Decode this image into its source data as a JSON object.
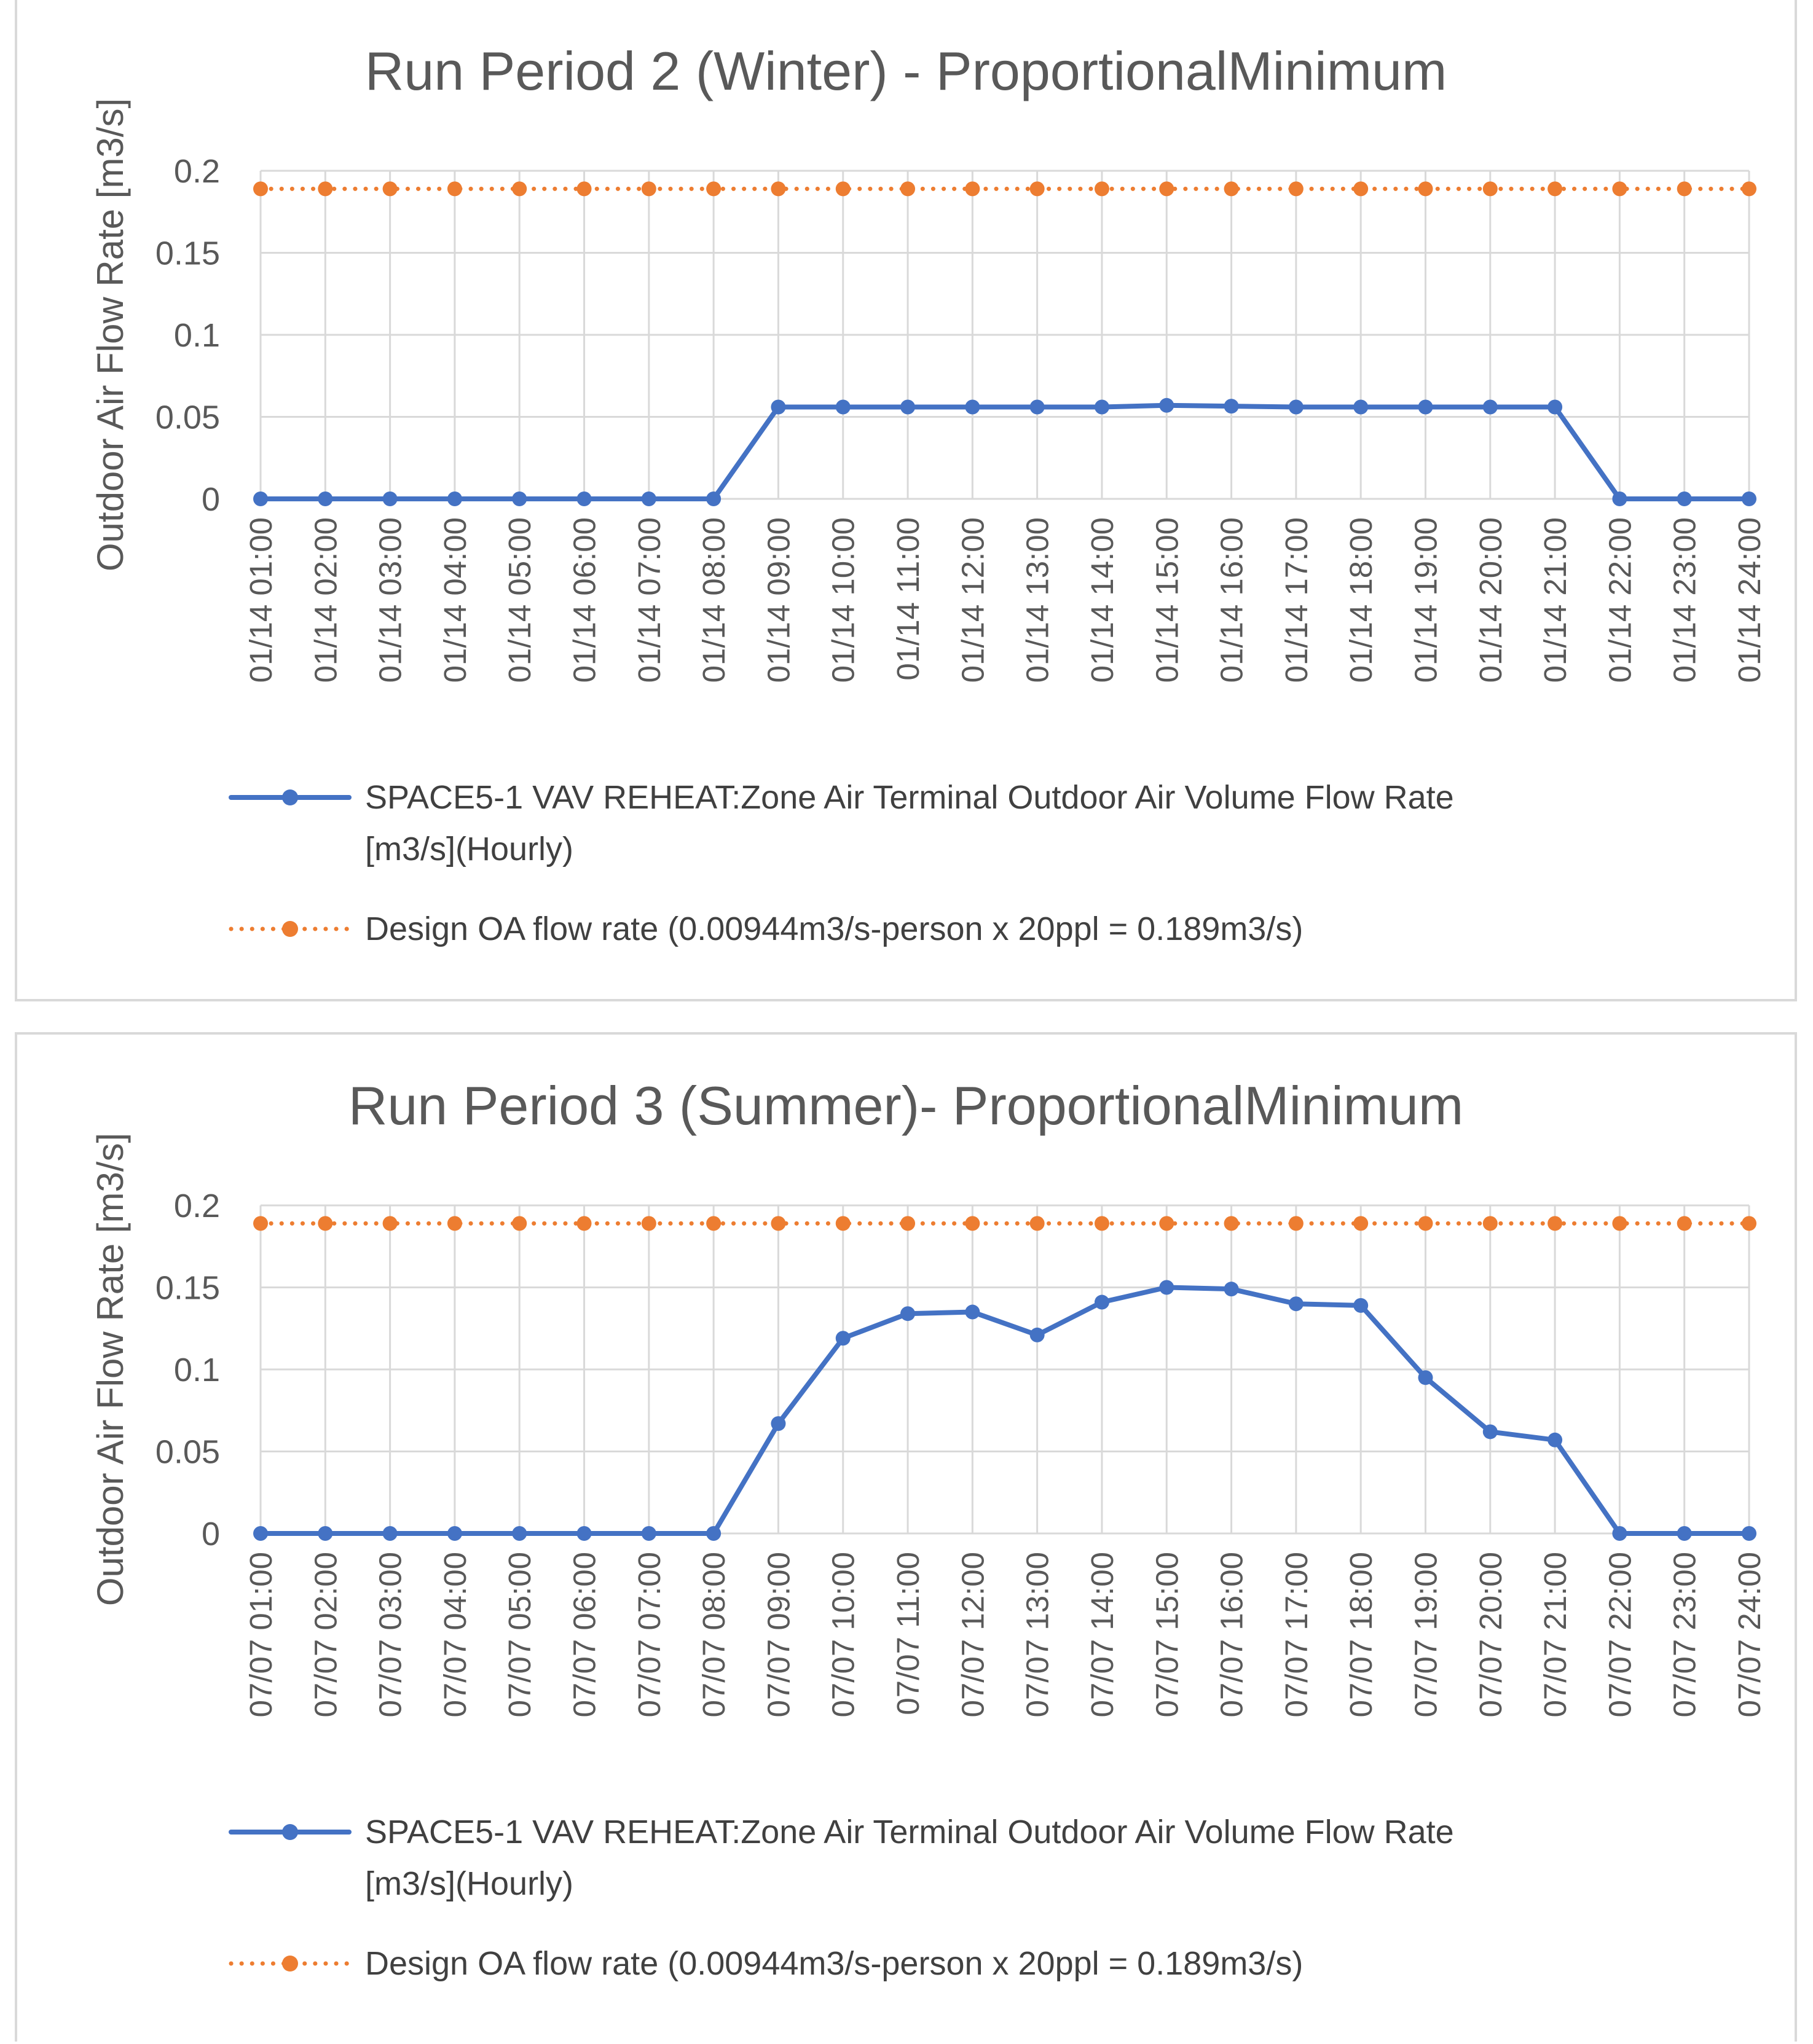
{
  "colors": {
    "series_blue": "#4472C4",
    "series_orange": "#ED7D31",
    "grid": "#D9D9D9",
    "text": "#595959"
  },
  "chart_data": [
    {
      "type": "line",
      "title": "Run Period 2 (Winter) - ProportionalMinimum",
      "ylabel": "Outdoor Air Flow Rate [m3/s]",
      "xlabel": "",
      "ylim": [
        0,
        0.2
      ],
      "yticks": [
        "0",
        "0.05",
        "0.1",
        "0.15",
        "0.2"
      ],
      "grid": true,
      "legend_position": "bottom",
      "categories": [
        "01/14  01:00",
        "01/14  02:00",
        "01/14  03:00",
        "01/14  04:00",
        "01/14  05:00",
        "01/14  06:00",
        "01/14  07:00",
        "01/14  08:00",
        "01/14  09:00",
        "01/14  10:00",
        "01/14  11:00",
        "01/14  12:00",
        "01/14  13:00",
        "01/14  14:00",
        "01/14  15:00",
        "01/14  16:00",
        "01/14  17:00",
        "01/14  18:00",
        "01/14  19:00",
        "01/14  20:00",
        "01/14  21:00",
        "01/14  22:00",
        "01/14  23:00",
        "01/14  24:00"
      ],
      "series": [
        {
          "name": "SPACE5-1 VAV REHEAT:Zone Air Terminal Outdoor Air Volume Flow Rate [m3/s](Hourly)",
          "legend_lines": [
            "SPACE5-1 VAV REHEAT:Zone Air Terminal Outdoor Air Volume Flow Rate",
            "[m3/s](Hourly)"
          ],
          "color": "#4472C4",
          "style": "solid",
          "values": [
            0,
            0,
            0,
            0,
            0,
            0,
            0,
            0,
            0.056,
            0.056,
            0.056,
            0.056,
            0.056,
            0.056,
            0.057,
            0.0565,
            0.056,
            0.056,
            0.056,
            0.056,
            0.056,
            0,
            0,
            0
          ]
        },
        {
          "name": "Design OA flow rate (0.00944m3/s-person x 20ppl = 0.189m3/s)",
          "legend_lines": [
            "Design OA flow rate (0.00944m3/s-person x 20ppl = 0.189m3/s)"
          ],
          "color": "#ED7D31",
          "style": "dotted",
          "values": [
            0.189,
            0.189,
            0.189,
            0.189,
            0.189,
            0.189,
            0.189,
            0.189,
            0.189,
            0.189,
            0.189,
            0.189,
            0.189,
            0.189,
            0.189,
            0.189,
            0.189,
            0.189,
            0.189,
            0.189,
            0.189,
            0.189,
            0.189,
            0.189
          ]
        }
      ]
    },
    {
      "type": "line",
      "title": "Run Period 3 (Summer)- ProportionalMinimum",
      "ylabel": "Outdoor Air Flow Rate [m3/s]",
      "xlabel": "",
      "ylim": [
        0,
        0.2
      ],
      "yticks": [
        "0",
        "0.05",
        "0.1",
        "0.15",
        "0.2"
      ],
      "grid": true,
      "legend_position": "bottom",
      "categories": [
        "07/07  01:00",
        "07/07  02:00",
        "07/07  03:00",
        "07/07  04:00",
        "07/07  05:00",
        "07/07  06:00",
        "07/07  07:00",
        "07/07  08:00",
        "07/07  09:00",
        "07/07  10:00",
        "07/07  11:00",
        "07/07  12:00",
        "07/07  13:00",
        "07/07  14:00",
        "07/07  15:00",
        "07/07  16:00",
        "07/07  17:00",
        "07/07  18:00",
        "07/07  19:00",
        "07/07  20:00",
        "07/07  21:00",
        "07/07  22:00",
        "07/07  23:00",
        "07/07  24:00"
      ],
      "series": [
        {
          "name": "SPACE5-1 VAV REHEAT:Zone Air Terminal Outdoor Air Volume Flow Rate [m3/s](Hourly)",
          "legend_lines": [
            "SPACE5-1 VAV REHEAT:Zone Air Terminal Outdoor Air Volume Flow Rate",
            "[m3/s](Hourly)"
          ],
          "color": "#4472C4",
          "style": "solid",
          "values": [
            0,
            0,
            0,
            0,
            0,
            0,
            0,
            0,
            0.067,
            0.119,
            0.134,
            0.135,
            0.121,
            0.141,
            0.15,
            0.149,
            0.14,
            0.139,
            0.095,
            0.062,
            0.057,
            0,
            0,
            0
          ]
        },
        {
          "name": "Design OA flow rate (0.00944m3/s-person x 20ppl = 0.189m3/s)",
          "legend_lines": [
            "Design OA flow rate (0.00944m3/s-person x 20ppl = 0.189m3/s)"
          ],
          "color": "#ED7D31",
          "style": "dotted",
          "values": [
            0.189,
            0.189,
            0.189,
            0.189,
            0.189,
            0.189,
            0.189,
            0.189,
            0.189,
            0.189,
            0.189,
            0.189,
            0.189,
            0.189,
            0.189,
            0.189,
            0.189,
            0.189,
            0.189,
            0.189,
            0.189,
            0.189,
            0.189,
            0.189
          ]
        }
      ]
    }
  ]
}
